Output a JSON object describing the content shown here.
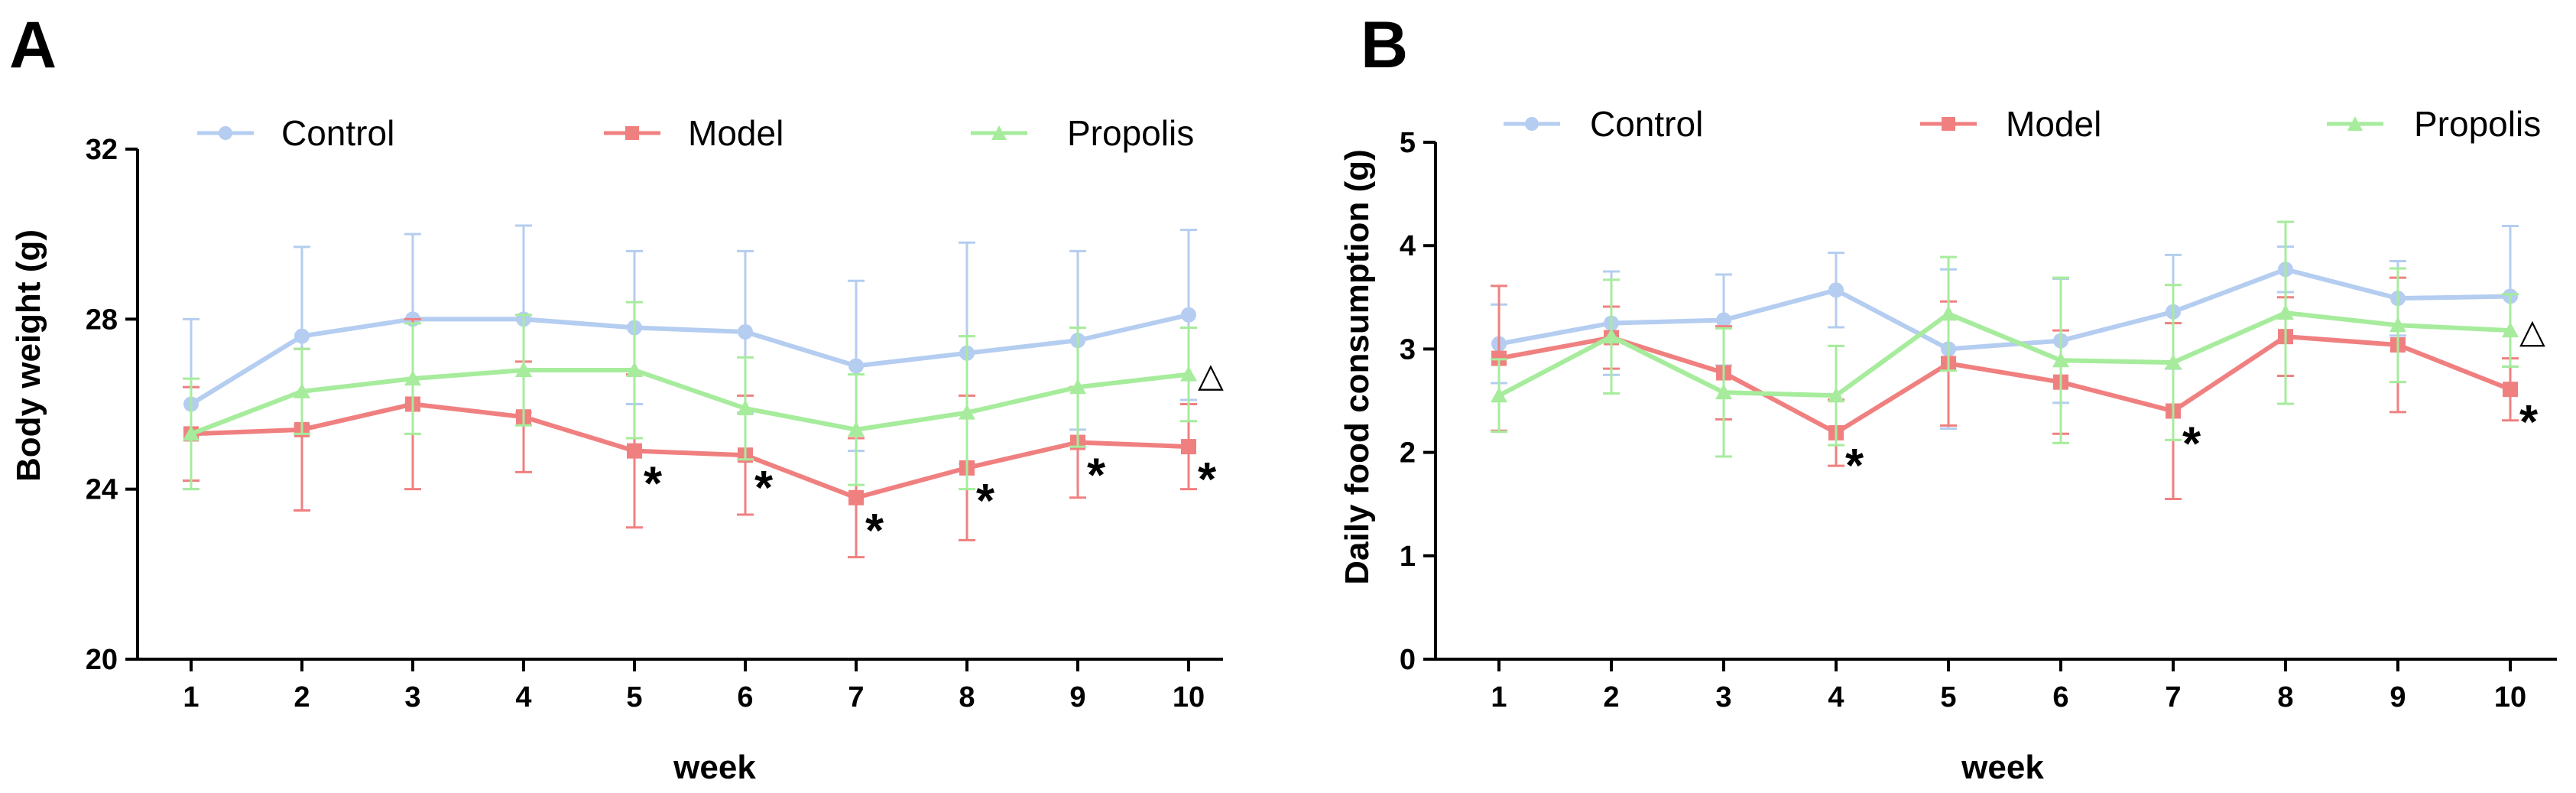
{
  "chart_data": [
    {
      "type": "line",
      "panel_label": "A",
      "xlabel": "week",
      "ylabel": "Body weight (g)",
      "x": [
        1,
        2,
        3,
        4,
        5,
        6,
        7,
        8,
        9,
        10
      ],
      "x_tick_labels": [
        "1",
        "2",
        "3",
        "4",
        "5",
        "6",
        "7",
        "8",
        "9",
        "10"
      ],
      "ylim": [
        20,
        32
      ],
      "y_ticks": [
        20,
        24,
        28,
        32
      ],
      "y_tick_labels": [
        "20",
        "24",
        "28",
        "32"
      ],
      "legend_position": "top",
      "series": [
        {
          "name": "Control",
          "color": "#b4cdf0",
          "marker": "circle",
          "values": [
            26.0,
            27.6,
            28.0,
            28.0,
            27.8,
            27.7,
            26.9,
            27.2,
            27.5,
            28.1
          ],
          "errors": [
            2.0,
            2.1,
            2.0,
            2.2,
            1.8,
            1.9,
            2.0,
            2.6,
            2.1,
            2.0
          ]
        },
        {
          "name": "Model",
          "color": "#f08080",
          "marker": "square",
          "values": [
            25.3,
            25.4,
            26.0,
            25.7,
            24.9,
            24.8,
            23.8,
            24.5,
            25.1,
            25.0
          ],
          "errors": [
            1.1,
            1.9,
            2.0,
            1.3,
            1.8,
            1.4,
            1.4,
            1.7,
            1.3,
            1.0
          ]
        },
        {
          "name": "Propolis",
          "color": "#a6ec9c",
          "marker": "triangle",
          "values": [
            25.3,
            26.3,
            26.6,
            26.8,
            26.8,
            25.9,
            25.4,
            25.8,
            26.4,
            26.7
          ],
          "errors": [
            1.3,
            1.0,
            1.3,
            1.3,
            1.6,
            1.2,
            1.3,
            1.8,
            1.4,
            1.1
          ]
        }
      ],
      "annotations": [
        {
          "text": "*",
          "x": 5,
          "y": 24.9
        },
        {
          "text": "*",
          "x": 6,
          "y": 24.8
        },
        {
          "text": "*",
          "x": 7,
          "y": 23.8
        },
        {
          "text": "*",
          "x": 8,
          "y": 24.5
        },
        {
          "text": "*",
          "x": 9,
          "y": 25.1
        },
        {
          "text": "*",
          "x": 10,
          "y": 25.0
        },
        {
          "text": "△",
          "x": 10,
          "y": 26.7
        }
      ]
    },
    {
      "type": "line",
      "panel_label": "B",
      "xlabel": "week",
      "ylabel": "Daily food consumption (g)",
      "x": [
        1,
        2,
        3,
        4,
        5,
        6,
        7,
        8,
        9,
        10
      ],
      "x_tick_labels": [
        "1",
        "2",
        "3",
        "4",
        "5",
        "6",
        "7",
        "8",
        "9",
        "10"
      ],
      "ylim": [
        0,
        5
      ],
      "y_ticks": [
        0,
        1,
        2,
        3,
        4,
        5
      ],
      "y_tick_labels": [
        "0",
        "1",
        "2",
        "3",
        "4",
        "5"
      ],
      "legend_position": "top",
      "series": [
        {
          "name": "Control",
          "color": "#b4cdf0",
          "marker": "circle",
          "values": [
            3.05,
            3.25,
            3.28,
            3.57,
            3.0,
            3.08,
            3.36,
            3.77,
            3.49,
            3.51
          ],
          "errors": [
            0.38,
            0.5,
            0.44,
            0.36,
            0.77,
            0.6,
            0.55,
            0.22,
            0.36,
            0.68
          ]
        },
        {
          "name": "Model",
          "color": "#f08080",
          "marker": "square",
          "values": [
            2.91,
            3.11,
            2.77,
            2.19,
            2.86,
            2.68,
            2.4,
            3.12,
            3.04,
            2.61
          ],
          "errors": [
            0.7,
            0.3,
            0.45,
            0.32,
            0.6,
            0.5,
            0.85,
            0.38,
            0.65,
            0.3
          ]
        },
        {
          "name": "Propolis",
          "color": "#a6ec9c",
          "marker": "triangle",
          "values": [
            2.55,
            3.12,
            2.58,
            2.55,
            3.34,
            2.89,
            2.87,
            3.35,
            3.23,
            3.18
          ],
          "errors": [
            0.35,
            0.55,
            0.62,
            0.48,
            0.55,
            0.8,
            0.75,
            0.88,
            0.55,
            0.35
          ]
        }
      ],
      "annotations": [
        {
          "text": "*",
          "x": 4,
          "y": 2.19
        },
        {
          "text": "*",
          "x": 7,
          "y": 2.4
        },
        {
          "text": "*",
          "x": 10,
          "y": 2.61
        },
        {
          "text": "△",
          "x": 10,
          "y": 3.18
        }
      ]
    }
  ]
}
